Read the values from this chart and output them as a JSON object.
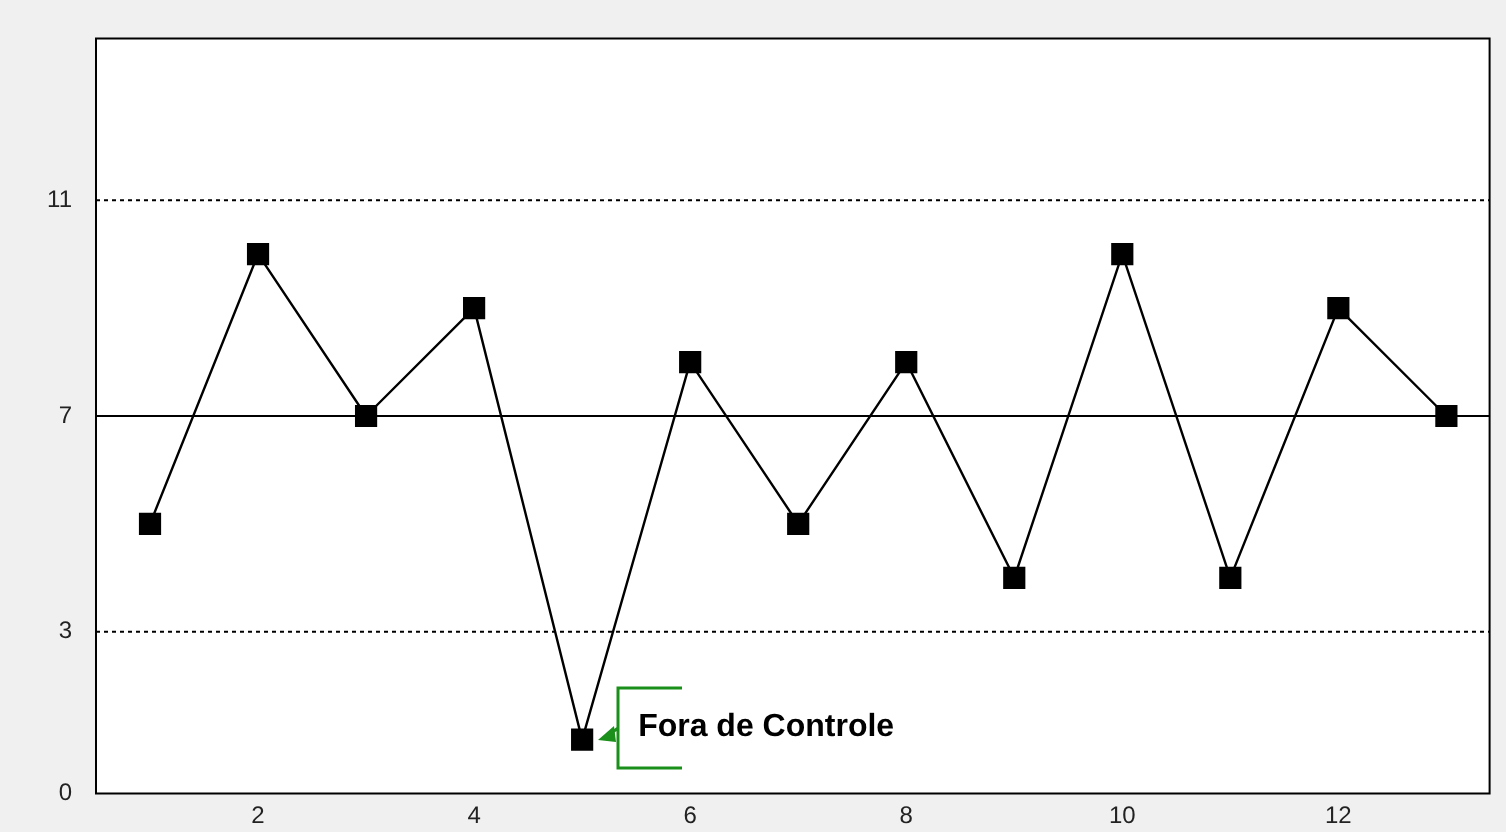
{
  "chart_data": {
    "type": "line",
    "x": [
      1,
      2,
      3,
      4,
      5,
      6,
      7,
      8,
      9,
      10,
      11,
      12,
      13
    ],
    "series": [
      {
        "color": "#000000",
        "values": [
          5,
          10,
          7,
          9,
          1,
          8,
          5,
          8,
          4,
          10,
          4,
          9,
          7
        ]
      }
    ],
    "xlim": [
      0.5,
      13.4
    ],
    "xticks": [
      2,
      4,
      6,
      8,
      10,
      12
    ],
    "ylim": [
      0,
      14
    ],
    "yticks": [
      0,
      3,
      7,
      11
    ],
    "ref_lines": [
      {
        "axis": "y",
        "value": 11,
        "line_style": "dotted",
        "color": "#000000"
      },
      {
        "axis": "y",
        "value": 7,
        "line_style": "solid",
        "color": "#000000"
      },
      {
        "axis": "y",
        "value": 3,
        "line_style": "dotted",
        "color": "#000000"
      }
    ],
    "annotations": [
      {
        "text": "Fora de Controle",
        "x": 5,
        "y": 1
      }
    ],
    "marker": "square",
    "line_style": "solid",
    "grid": false,
    "legend": false
  }
}
